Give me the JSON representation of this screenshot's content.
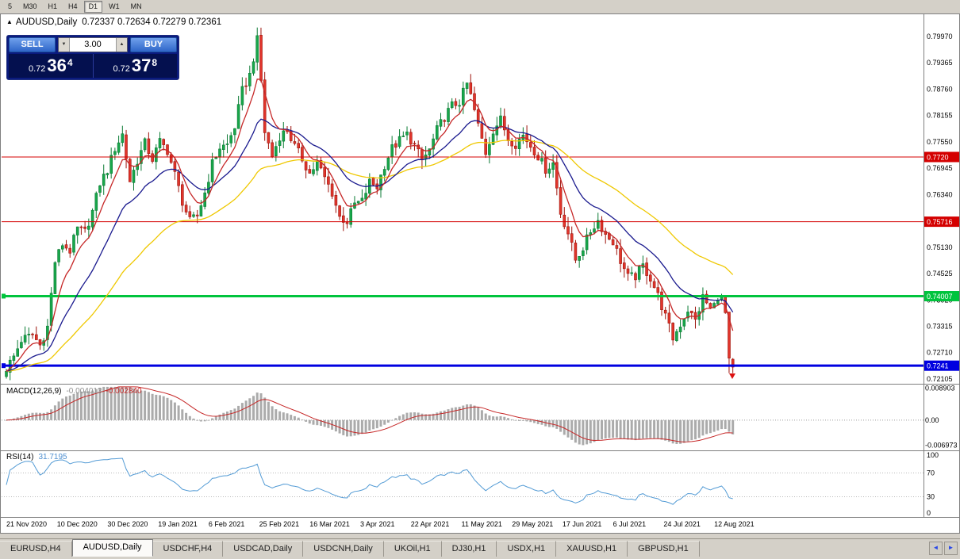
{
  "toolbar": {
    "timeframes": [
      {
        "label": "5",
        "active": false
      },
      {
        "label": "M30",
        "active": false
      },
      {
        "label": "H1",
        "active": false
      },
      {
        "label": "H4",
        "active": false
      },
      {
        "label": "D1",
        "active": true
      },
      {
        "label": "W1",
        "active": false
      },
      {
        "label": "MN",
        "active": false
      }
    ]
  },
  "chart": {
    "collapse_icon": "▲",
    "symbol_title": "AUDUSD,Daily",
    "ohlc": "0.72337 0.72634 0.72279 0.72361",
    "one_click": {
      "sell_label": "SELL",
      "buy_label": "BUY",
      "volume": "3.00",
      "vol_down_icon": "▼",
      "vol_up_icon": "▲",
      "sell_price": {
        "small": "0.72",
        "big": "36",
        "sup": "4"
      },
      "buy_price": {
        "small": "0.72",
        "big": "37",
        "sup": "8"
      }
    },
    "indicators": {
      "macd_label": "MACD(12,26,9)",
      "macd_value_main": "-0.004013",
      "macd_value_signal": "-0.002840",
      "rsi_label": "RSI(14)",
      "rsi_value": "31.7195"
    }
  },
  "chart_data": {
    "type": "candlestick",
    "symbol": "AUDUSD",
    "timeframe": "Daily",
    "candle_count": 195,
    "price_range": [
      0.7205,
      0.8044
    ],
    "price_axis_labels": [
      "0.79970",
      "0.79365",
      "0.78760",
      "0.78155",
      "0.77550",
      "0.76945",
      "0.76340",
      "0.75735",
      "0.75130",
      "0.74525",
      "0.73920",
      "0.73315",
      "0.72710",
      "0.72105"
    ],
    "date_axis_labels": [
      "21 Nov 2020",
      "10 Dec 2020",
      "30 Dec 2020",
      "19 Jan 2021",
      "6 Feb 2021",
      "25 Feb 2021",
      "16 Mar 2021",
      "3 Apr 2021",
      "22 Apr 2021",
      "11 May 2021",
      "29 May 2021",
      "17 Jun 2021",
      "6 Jul 2021",
      "24 Jul 2021",
      "12 Aug 2021"
    ],
    "hlines": [
      {
        "price": 0.772,
        "label": "0.7720",
        "color": "#d40000",
        "width": 1
      },
      {
        "price": 0.75716,
        "label": "0.75716",
        "color": "#d40000",
        "width": 1
      },
      {
        "price": 0.74007,
        "label": "0.74007",
        "color": "#00c43d",
        "width": 3
      },
      {
        "price": 0.72411,
        "label": "0.7241",
        "color": "#0000e0",
        "width": 3
      }
    ],
    "close_anchors": [
      [
        0,
        0.7235
      ],
      [
        2,
        0.7262
      ],
      [
        4,
        0.73
      ],
      [
        7,
        0.7312
      ],
      [
        9,
        0.7288
      ],
      [
        11,
        0.733
      ],
      [
        13,
        0.748
      ],
      [
        15,
        0.752
      ],
      [
        17,
        0.7505
      ],
      [
        19,
        0.7555
      ],
      [
        21,
        0.7548
      ],
      [
        23,
        0.7595
      ],
      [
        25,
        0.766
      ],
      [
        27,
        0.769
      ],
      [
        29,
        0.774
      ],
      [
        31,
        0.7772
      ],
      [
        33,
        0.7665
      ],
      [
        35,
        0.7712
      ],
      [
        37,
        0.7752
      ],
      [
        39,
        0.7715
      ],
      [
        41,
        0.7755
      ],
      [
        43,
        0.7735
      ],
      [
        45,
        0.768
      ],
      [
        47,
        0.7618
      ],
      [
        49,
        0.7572
      ],
      [
        51,
        0.7585
      ],
      [
        53,
        0.7638
      ],
      [
        55,
        0.7705
      ],
      [
        57,
        0.7742
      ],
      [
        59,
        0.7748
      ],
      [
        61,
        0.779
      ],
      [
        63,
        0.7872
      ],
      [
        65,
        0.7908
      ],
      [
        67,
        0.7988
      ],
      [
        68,
        0.7895
      ],
      [
        69,
        0.7778
      ],
      [
        71,
        0.7722
      ],
      [
        73,
        0.7768
      ],
      [
        75,
        0.7782
      ],
      [
        77,
        0.7744
      ],
      [
        79,
        0.7716
      ],
      [
        81,
        0.7682
      ],
      [
        83,
        0.7706
      ],
      [
        85,
        0.7672
      ],
      [
        87,
        0.7638
      ],
      [
        89,
        0.7582
      ],
      [
        91,
        0.7572
      ],
      [
        93,
        0.7612
      ],
      [
        95,
        0.7618
      ],
      [
        97,
        0.7662
      ],
      [
        99,
        0.7652
      ],
      [
        101,
        0.7702
      ],
      [
        103,
        0.774
      ],
      [
        105,
        0.7758
      ],
      [
        107,
        0.7772
      ],
      [
        109,
        0.7746
      ],
      [
        111,
        0.7712
      ],
      [
        113,
        0.7736
      ],
      [
        115,
        0.7782
      ],
      [
        117,
        0.7812
      ],
      [
        119,
        0.7838
      ],
      [
        121,
        0.7846
      ],
      [
        123,
        0.7888
      ],
      [
        124,
        0.786
      ],
      [
        126,
        0.7792
      ],
      [
        128,
        0.773
      ],
      [
        130,
        0.7782
      ],
      [
        132,
        0.7806
      ],
      [
        134,
        0.7762
      ],
      [
        136,
        0.775
      ],
      [
        138,
        0.777
      ],
      [
        140,
        0.7746
      ],
      [
        142,
        0.7722
      ],
      [
        144,
        0.7692
      ],
      [
        146,
        0.7706
      ],
      [
        148,
        0.7592
      ],
      [
        150,
        0.7546
      ],
      [
        152,
        0.7484
      ],
      [
        154,
        0.7512
      ],
      [
        156,
        0.755
      ],
      [
        158,
        0.7574
      ],
      [
        160,
        0.7542
      ],
      [
        162,
        0.7526
      ],
      [
        164,
        0.7482
      ],
      [
        166,
        0.7444
      ],
      [
        168,
        0.7446
      ],
      [
        170,
        0.747
      ],
      [
        172,
        0.7442
      ],
      [
        174,
        0.7402
      ],
      [
        176,
        0.7354
      ],
      [
        178,
        0.7304
      ],
      [
        180,
        0.7336
      ],
      [
        182,
        0.737
      ],
      [
        184,
        0.7344
      ],
      [
        186,
        0.7398
      ],
      [
        188,
        0.7372
      ],
      [
        190,
        0.7394
      ],
      [
        191,
        0.74
      ],
      [
        192,
        0.7362
      ],
      [
        193,
        0.7256
      ],
      [
        194,
        0.7236
      ]
    ],
    "moving_averages": [
      {
        "name": "fast",
        "period": 7,
        "color": "#c62828"
      },
      {
        "name": "mid",
        "period": 20,
        "color": "#1a1a8e"
      },
      {
        "name": "slow",
        "period": 50,
        "color": "#efc800"
      }
    ],
    "up_color": "#18a74b",
    "up_stroke": "#0a7a33",
    "down_color": "#e1352c",
    "down_stroke": "#9d140c",
    "macd": {
      "axis_labels": [
        "0.008903",
        "0.00",
        "-0.006973"
      ],
      "range": [
        -0.0078,
        0.0095
      ],
      "histogram_color": "#ababab",
      "signal_color": "#c62828"
    },
    "rsi": {
      "axis_labels": [
        "100",
        "70",
        "30",
        "0"
      ],
      "levels": [
        70,
        30
      ],
      "color": "#539bd5"
    }
  },
  "tabs": {
    "items": [
      {
        "label": "EURUSD,H4",
        "active": false
      },
      {
        "label": "AUDUSD,Daily",
        "active": true
      },
      {
        "label": "USDCHF,H4",
        "active": false
      },
      {
        "label": "USDCAD,Daily",
        "active": false
      },
      {
        "label": "USDCNH,Daily",
        "active": false
      },
      {
        "label": "UKOil,H1",
        "active": false
      },
      {
        "label": "DJ30,H1",
        "active": false
      },
      {
        "label": "USDX,H1",
        "active": false
      },
      {
        "label": "XAUUSD,H1",
        "active": false
      },
      {
        "label": "GBPUSD,H1",
        "active": false
      }
    ],
    "scroll_left_icon": "◄",
    "scroll_right_icon": "►"
  }
}
